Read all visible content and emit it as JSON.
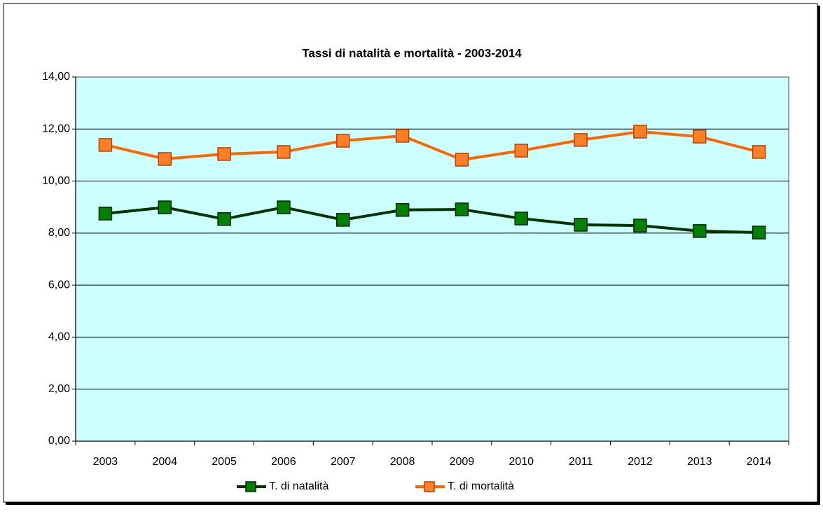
{
  "chart_data": {
    "type": "line",
    "title": "Tassi di natalità e mortalità - 2003-2014",
    "categories": [
      "2003",
      "2004",
      "2005",
      "2006",
      "2007",
      "2008",
      "2009",
      "2010",
      "2011",
      "2012",
      "2013",
      "2014"
    ],
    "series": [
      {
        "name": "T. di natalità",
        "color": "#003300",
        "marker_color": "#008000",
        "values": [
          8.75,
          8.99,
          8.54,
          8.99,
          8.51,
          8.89,
          8.91,
          8.56,
          8.32,
          8.29,
          8.08,
          8.02
        ]
      },
      {
        "name": "T. di mortalità",
        "color": "#ff6600",
        "marker_color": "#ff7f27",
        "values": [
          11.39,
          10.85,
          11.04,
          11.12,
          11.55,
          11.74,
          10.82,
          11.17,
          11.58,
          11.9,
          11.71,
          11.12
        ]
      }
    ],
    "ylim": [
      0,
      14
    ],
    "yticks": [
      {
        "value": 0,
        "label": "0,00"
      },
      {
        "value": 2,
        "label": "2,00"
      },
      {
        "value": 4,
        "label": "4,00"
      },
      {
        "value": 6,
        "label": "6,00"
      },
      {
        "value": 8,
        "label": "8,00"
      },
      {
        "value": 10,
        "label": "10,00"
      },
      {
        "value": 12,
        "label": "12,00"
      },
      {
        "value": 14,
        "label": "14,00"
      }
    ],
    "grid": true,
    "plot_background": "#ccffff",
    "legend": "bottom"
  }
}
